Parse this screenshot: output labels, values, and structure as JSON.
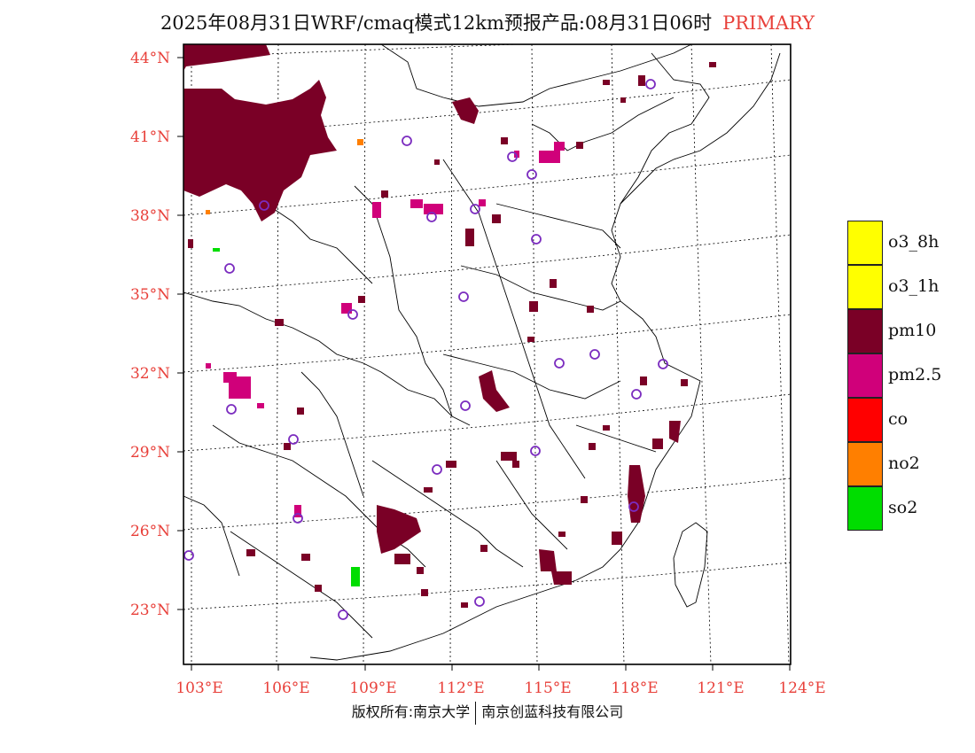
{
  "title": {
    "main": "2025年08月31日WRF/cmaq模式12km预报产品:08月31日06时",
    "tag": "PRIMARY"
  },
  "footer": {
    "left": "版权所有:南京大学",
    "right": "南京创蓝科技有限公司"
  },
  "map": {
    "lat_labels": [
      "44°N",
      "41°N",
      "38°N",
      "35°N",
      "32°N",
      "29°N",
      "26°N",
      "23°N"
    ],
    "lon_labels": [
      "103°E",
      "106°E",
      "109°E",
      "112°E",
      "115°E",
      "118°E",
      "121°E",
      "124°E"
    ],
    "label_color": "#e8403a",
    "site_marker_color": "#7b2cbf"
  },
  "legend": {
    "items": [
      {
        "label": "o3_8h",
        "color": "#ffff00"
      },
      {
        "label": "o3_1h",
        "color": "#ffff00"
      },
      {
        "label": "pm10",
        "color": "#7a0026"
      },
      {
        "label": "pm2.5",
        "color": "#d0007a"
      },
      {
        "label": "co",
        "color": "#ff0000"
      },
      {
        "label": "no2",
        "color": "#ff7f00"
      },
      {
        "label": "so2",
        "color": "#00dd00"
      }
    ]
  }
}
